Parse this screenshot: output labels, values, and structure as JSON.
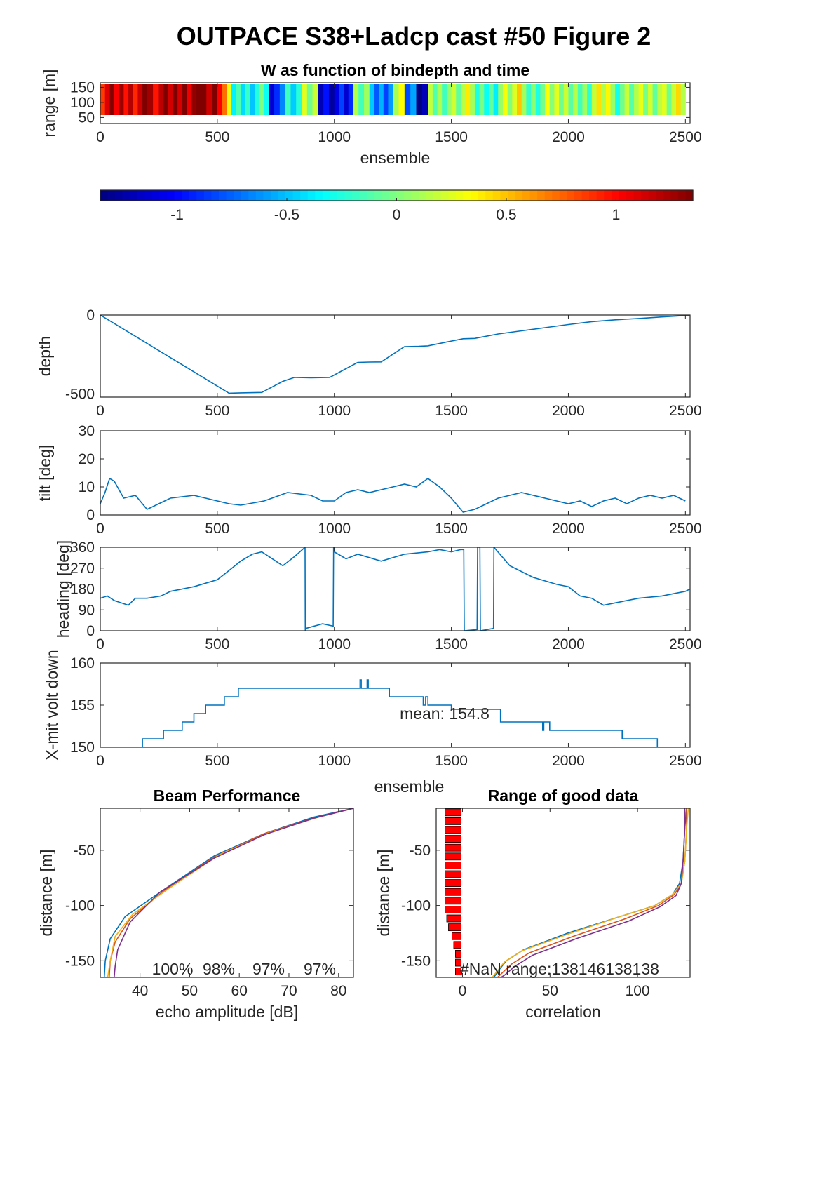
{
  "figure": {
    "title": "OUTPACE S38+Ladcp cast #50 Figure 2"
  },
  "chart_data": [
    {
      "id": "w_image",
      "type": "heatmap",
      "title": "W as function of bindepth and time",
      "xlabel": "ensemble",
      "ylabel": "range [m]",
      "xlim": [
        0,
        2520
      ],
      "ylim": [
        30,
        165
      ],
      "xticks": [
        0,
        500,
        1000,
        1500,
        2000,
        2500
      ],
      "yticks": [
        50,
        100,
        150
      ],
      "colormap": "jet",
      "clim": [
        -1.35,
        1.35
      ],
      "colorbar_ticks": [
        -1,
        -0.5,
        0,
        0.5,
        1
      ],
      "segments": [
        {
          "x": [
            0,
            40
          ],
          "value": 1.1
        },
        {
          "x": [
            40,
            200
          ],
          "value": 1.15
        },
        {
          "x": [
            200,
            250
          ],
          "value": 1.2
        },
        {
          "x": [
            250,
            330
          ],
          "value": 1.25
        },
        {
          "x": [
            330,
            430
          ],
          "value": 1.3
        },
        {
          "x": [
            430,
            500
          ],
          "value": 1.2
        },
        {
          "x": [
            500,
            540
          ],
          "value": 0.9
        },
        {
          "x": [
            540,
            560
          ],
          "value": 0.3
        },
        {
          "x": [
            560,
            720
          ],
          "value": -0.25
        },
        {
          "x": [
            720,
            790
          ],
          "value": -0.9
        },
        {
          "x": [
            790,
            860
          ],
          "value": -0.35
        },
        {
          "x": [
            860,
            930
          ],
          "value": 0.2
        },
        {
          "x": [
            930,
            1000
          ],
          "value": -1.15
        },
        {
          "x": [
            1000,
            1080
          ],
          "value": -0.9
        },
        {
          "x": [
            1080,
            1150
          ],
          "value": -0.1
        },
        {
          "x": [
            1150,
            1250
          ],
          "value": -0.6
        },
        {
          "x": [
            1250,
            1300
          ],
          "value": 0.1
        },
        {
          "x": [
            1300,
            1350
          ],
          "value": -0.7
        },
        {
          "x": [
            1350,
            1400
          ],
          "value": -1.2
        },
        {
          "x": [
            1400,
            1500
          ],
          "value": 0.0
        },
        {
          "x": [
            1500,
            1600
          ],
          "value": 0.15
        },
        {
          "x": [
            1600,
            1700
          ],
          "value": -0.2
        },
        {
          "x": [
            1700,
            1800
          ],
          "value": 0.25
        },
        {
          "x": [
            1800,
            1900
          ],
          "value": -0.15
        },
        {
          "x": [
            1900,
            2000
          ],
          "value": 0.2
        },
        {
          "x": [
            2000,
            2100
          ],
          "value": -0.1
        },
        {
          "x": [
            2100,
            2200
          ],
          "value": 0.3
        },
        {
          "x": [
            2200,
            2300
          ],
          "value": -0.05
        },
        {
          "x": [
            2300,
            2400
          ],
          "value": 0.1
        },
        {
          "x": [
            2400,
            2500
          ],
          "value": 0.2
        }
      ]
    },
    {
      "id": "depth",
      "type": "line",
      "xlabel": "",
      "ylabel": "depth",
      "xlim": [
        0,
        2520
      ],
      "ylim": [
        -520,
        0
      ],
      "xticks": [
        0,
        500,
        1000,
        1500,
        2000,
        2500
      ],
      "yticks": [
        -500,
        0
      ],
      "series": [
        {
          "color": "#0072bd",
          "x": [
            0,
            550,
            600,
            690,
            780,
            830,
            900,
            980,
            1100,
            1150,
            1200,
            1300,
            1360,
            1400,
            1500,
            1550,
            1600,
            1700,
            1800,
            1900,
            2000,
            2100,
            2200,
            2300,
            2400,
            2500,
            2520
          ],
          "y": [
            0,
            -495,
            -493,
            -490,
            -420,
            -395,
            -398,
            -395,
            -300,
            -298,
            -297,
            -200,
            -198,
            -195,
            -165,
            -150,
            -148,
            -120,
            -100,
            -80,
            -60,
            -42,
            -30,
            -22,
            -12,
            -3,
            0
          ]
        }
      ]
    },
    {
      "id": "tilt",
      "type": "line",
      "xlabel": "",
      "ylabel": "tilt [deg]",
      "xlim": [
        0,
        2520
      ],
      "ylim": [
        0,
        30
      ],
      "xticks": [
        0,
        500,
        1000,
        1500,
        2000,
        2500
      ],
      "yticks": [
        0,
        10,
        20,
        30
      ],
      "series": [
        {
          "color": "#0072bd",
          "x": [
            0,
            20,
            40,
            60,
            100,
            150,
            200,
            250,
            300,
            400,
            450,
            500,
            550,
            600,
            700,
            800,
            900,
            950,
            1000,
            1050,
            1100,
            1150,
            1200,
            1250,
            1300,
            1350,
            1400,
            1450,
            1500,
            1550,
            1600,
            1650,
            1700,
            1750,
            1800,
            1850,
            1900,
            1950,
            2000,
            2050,
            2100,
            2150,
            2200,
            2250,
            2300,
            2350,
            2400,
            2450,
            2500
          ],
          "y": [
            4,
            8,
            13,
            12,
            6,
            7,
            2,
            4,
            6,
            7,
            6,
            5,
            4,
            3.5,
            5,
            8,
            7,
            5,
            5,
            8,
            9,
            8,
            9,
            10,
            11,
            10,
            13,
            10,
            6,
            1,
            2,
            4,
            6,
            7,
            8,
            7,
            6,
            5,
            4,
            5,
            3,
            5,
            6,
            4,
            6,
            7,
            6,
            7,
            5
          ]
        }
      ]
    },
    {
      "id": "heading",
      "type": "line",
      "xlabel": "",
      "ylabel": "heading [deg]",
      "xlim": [
        0,
        2520
      ],
      "ylim": [
        0,
        360
      ],
      "xticks": [
        0,
        500,
        1000,
        1500,
        2000,
        2500
      ],
      "yticks": [
        0,
        90,
        180,
        270,
        360
      ],
      "series": [
        {
          "color": "#0072bd",
          "x": [
            0,
            30,
            60,
            120,
            150,
            200,
            260,
            300,
            400,
            500,
            550,
            600,
            650,
            690,
            720,
            780,
            830,
            875,
            876,
            878,
            950,
            995,
            997,
            1000,
            1050,
            1100,
            1200,
            1300,
            1400,
            1450,
            1500,
            1540,
            1553,
            1555,
            1610,
            1612,
            1622,
            1624,
            1680,
            1682,
            1750,
            1850,
            1950,
            2000,
            2050,
            2100,
            2150,
            2200,
            2300,
            2400,
            2500,
            2520
          ],
          "y": [
            140,
            150,
            130,
            110,
            140,
            140,
            150,
            170,
            190,
            220,
            260,
            300,
            330,
            340,
            320,
            280,
            320,
            360,
            0,
            10,
            30,
            20,
            360,
            340,
            310,
            330,
            300,
            330,
            340,
            350,
            340,
            350,
            350,
            0,
            5,
            360,
            360,
            0,
            10,
            360,
            280,
            230,
            200,
            190,
            150,
            140,
            110,
            120,
            140,
            150,
            170,
            180
          ]
        }
      ]
    },
    {
      "id": "xmit_volt",
      "type": "line",
      "xlabel": "ensemble",
      "ylabel": "X-mit volt down",
      "xlim": [
        0,
        2520
      ],
      "ylim": [
        150,
        160
      ],
      "xticks": [
        0,
        500,
        1000,
        1500,
        2000,
        2500
      ],
      "yticks": [
        150,
        155,
        160
      ],
      "annotation": "mean: 154.8",
      "series": [
        {
          "color": "#0072bd",
          "x": [
            0,
            180,
            180,
            270,
            270,
            350,
            350,
            400,
            400,
            450,
            450,
            530,
            530,
            590,
            590,
            1110,
            1110,
            1115,
            1115,
            1140,
            1140,
            1145,
            1145,
            1235,
            1235,
            1380,
            1380,
            1390,
            1390,
            1400,
            1400,
            1500,
            1500,
            1710,
            1710,
            1890,
            1890,
            1895,
            1895,
            1920,
            1920,
            1925,
            1925,
            2230,
            2230,
            2380,
            2380,
            2520
          ],
          "y": [
            150,
            150,
            151,
            151,
            152,
            152,
            153,
            153,
            154,
            154,
            155,
            155,
            156,
            156,
            157,
            157,
            158,
            158,
            157,
            157,
            158,
            158,
            157,
            157,
            156,
            156,
            155,
            155,
            156,
            156,
            155,
            155,
            154.5,
            154.5,
            153,
            153,
            152,
            152,
            153,
            153,
            152,
            152,
            152,
            152,
            151,
            151,
            150,
            150
          ]
        }
      ]
    },
    {
      "id": "beam_performance",
      "type": "line",
      "title": "Beam Performance",
      "xlabel": "echo amplitude [dB]",
      "ylabel": "distance [m]",
      "xlim": [
        32,
        83
      ],
      "ylim": [
        -165,
        -12
      ],
      "xticks": [
        40,
        50,
        60,
        70,
        80
      ],
      "yticks": [
        -150,
        -100,
        -50
      ],
      "beam_percent_labels": [
        "100%",
        "98%",
        "97%",
        "97%"
      ],
      "series": [
        {
          "color": "#0072bd",
          "x": [
            83,
            75,
            65,
            55,
            45,
            37,
            34,
            33,
            32.8
          ],
          "y": [
            -12,
            -20,
            -35,
            -55,
            -85,
            -110,
            -130,
            -150,
            -165
          ]
        },
        {
          "color": "#d95319",
          "x": [
            83,
            75,
            65,
            55,
            45,
            38,
            35,
            34,
            33.8
          ],
          "y": [
            -12,
            -21,
            -35,
            -56,
            -86,
            -112,
            -133,
            -150,
            -165
          ]
        },
        {
          "color": "#edb120",
          "x": [
            83,
            76,
            66,
            56,
            46,
            38.5,
            35,
            34,
            33.5
          ],
          "y": [
            -12,
            -20,
            -34,
            -54,
            -84,
            -108,
            -128,
            -150,
            -165
          ]
        },
        {
          "color": "#7e2f8e",
          "x": [
            83,
            75,
            65,
            55,
            44,
            38,
            35.5,
            35,
            34.8
          ],
          "y": [
            -12,
            -21,
            -36,
            -57,
            -88,
            -115,
            -140,
            -155,
            -165
          ]
        }
      ]
    },
    {
      "id": "range_good_data",
      "type": "line",
      "title": "Range of good data",
      "xlabel": "correlation",
      "ylabel": "distance [m]",
      "xlim": [
        -15,
        130
      ],
      "ylim": [
        -165,
        -12
      ],
      "xticks": [
        0,
        50,
        100
      ],
      "yticks": [
        -150,
        -100,
        -50
      ],
      "annotation": "#NaN range:138146138138",
      "series": [
        {
          "color": "#0072bd",
          "x": [
            128,
            127,
            126,
            124,
            120,
            110,
            90,
            60,
            35,
            25,
            20,
            18
          ],
          "y": [
            -12,
            -30,
            -60,
            -80,
            -90,
            -100,
            -110,
            -125,
            -140,
            -150,
            -160,
            -165
          ]
        },
        {
          "color": "#d95319",
          "x": [
            128,
            128,
            127,
            125,
            121,
            112,
            93,
            63,
            38,
            28,
            22,
            20
          ],
          "y": [
            -12,
            -30,
            -60,
            -80,
            -90,
            -100,
            -112,
            -128,
            -143,
            -153,
            -162,
            -165
          ]
        },
        {
          "color": "#edb120",
          "x": [
            129,
            128,
            127,
            125,
            120,
            110,
            90,
            60,
            34,
            24,
            19,
            17
          ],
          "y": [
            -12,
            -30,
            -60,
            -80,
            -90,
            -100,
            -110,
            -126,
            -141,
            -151,
            -161,
            -165
          ]
        },
        {
          "color": "#7e2f8e",
          "x": [
            127,
            127,
            126,
            125,
            122,
            113,
            95,
            65,
            40,
            30,
            24,
            22
          ],
          "y": [
            -12,
            -30,
            -60,
            -80,
            -91,
            -101,
            -114,
            -130,
            -145,
            -155,
            -163,
            -165
          ]
        }
      ],
      "nan_bars": {
        "color": "#ff0000",
        "depths": [
          -16,
          -24,
          -32,
          -40,
          -48,
          -56,
          -64,
          -72,
          -80,
          -88,
          -96,
          -104,
          -112,
          -120,
          -128,
          -136,
          -144,
          -152,
          -160
        ],
        "widths": [
          10,
          10,
          10,
          10,
          10,
          10,
          10,
          10,
          10,
          10,
          10,
          10,
          9,
          8,
          6,
          5,
          4,
          4,
          4
        ]
      }
    }
  ]
}
